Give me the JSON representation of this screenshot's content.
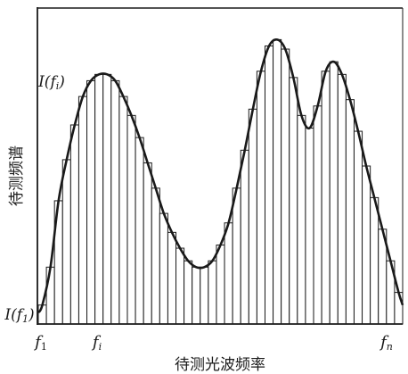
{
  "chart_data": {
    "type": "bar",
    "title": "",
    "xlabel": "待测光波频率",
    "ylabel": "待测频谱",
    "grid": false,
    "legend": "none",
    "colors": {
      "stroke": "#1a1a1a",
      "fill": "#ffffff",
      "curve": "#1a1a1a"
    },
    "x_tick_labels": [
      {
        "main": "f",
        "sub": "1"
      },
      {
        "main": "f",
        "sub": "i"
      },
      {
        "main": "f",
        "sub": "n"
      }
    ],
    "annotations": [
      {
        "text_prefix": "I(f",
        "sub": "i",
        "text_suffix": ")"
      },
      {
        "text_prefix": "I(f",
        "sub": "1",
        "text_suffix": ")"
      }
    ],
    "values": [
      0.06,
      0.18,
      0.39,
      0.52,
      0.63,
      0.72,
      0.77,
      0.79,
      0.79,
      0.77,
      0.72,
      0.66,
      0.59,
      0.51,
      0.43,
      0.35,
      0.29,
      0.24,
      0.2,
      0.18,
      0.18,
      0.2,
      0.25,
      0.32,
      0.43,
      0.55,
      0.68,
      0.8,
      0.88,
      0.9,
      0.87,
      0.78,
      0.66,
      0.62,
      0.69,
      0.8,
      0.83,
      0.79,
      0.71,
      0.61,
      0.5,
      0.4,
      0.3,
      0.2,
      0.1
    ],
    "ylim": [
      0,
      1
    ]
  }
}
